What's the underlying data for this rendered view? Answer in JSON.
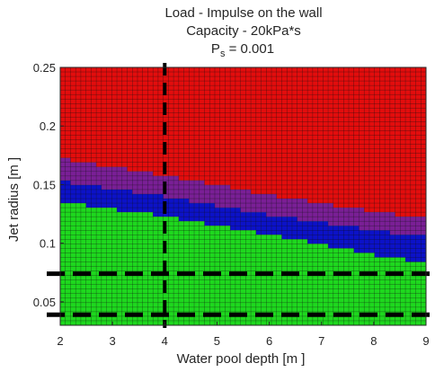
{
  "chart_data": {
    "type": "heatmap",
    "title_lines": [
      "Load - Impulse on the wall",
      "Capacity - 20kPa*s"
    ],
    "title_ps_base": "P",
    "title_ps_sub": "s",
    "title_ps_rest": " = 0.001",
    "xlabel": "Water pool depth  [m ]",
    "ylabel": "Jet radius  [m ]",
    "xlim": [
      2,
      9
    ],
    "ylim": [
      0.03,
      0.25
    ],
    "x_ticks": [
      2,
      3,
      4,
      5,
      6,
      7,
      8,
      9
    ],
    "y_ticks": [
      0.05,
      0.1,
      0.15,
      0.2,
      0.25
    ],
    "y_tick_labels": [
      "0.05",
      "0.1",
      "0.15",
      "0.2",
      "0.25"
    ],
    "grid_resolution": {
      "x_cells": 71,
      "y_cells": 57
    },
    "colors": {
      "red": "#e30d0d",
      "purple": "#7a1f96",
      "blue": "#0c12c8",
      "green": "#1ed81e",
      "grid_line": "#111111",
      "guide_line": "#000000"
    },
    "regions": [
      {
        "color": "red",
        "description": "above purple boundary"
      },
      {
        "color": "purple",
        "upper_boundary": [
          [
            2,
            0.172
          ],
          [
            4,
            0.158
          ],
          [
            6,
            0.141
          ],
          [
            8,
            0.127
          ],
          [
            9,
            0.121
          ]
        ]
      },
      {
        "color": "blue",
        "upper_boundary": [
          [
            2,
            0.153
          ],
          [
            4,
            0.14
          ],
          [
            6,
            0.124
          ],
          [
            8,
            0.111
          ],
          [
            9,
            0.105
          ]
        ]
      },
      {
        "color": "green",
        "upper_boundary": [
          [
            2,
            0.135
          ],
          [
            4,
            0.123
          ],
          [
            6,
            0.107
          ],
          [
            7,
            0.099
          ],
          [
            8,
            0.09
          ],
          [
            9,
            0.083
          ]
        ]
      }
    ],
    "guide_lines": {
      "vertical_x": [
        4
      ],
      "horizontal_y": [
        0.074,
        0.039
      ]
    }
  }
}
